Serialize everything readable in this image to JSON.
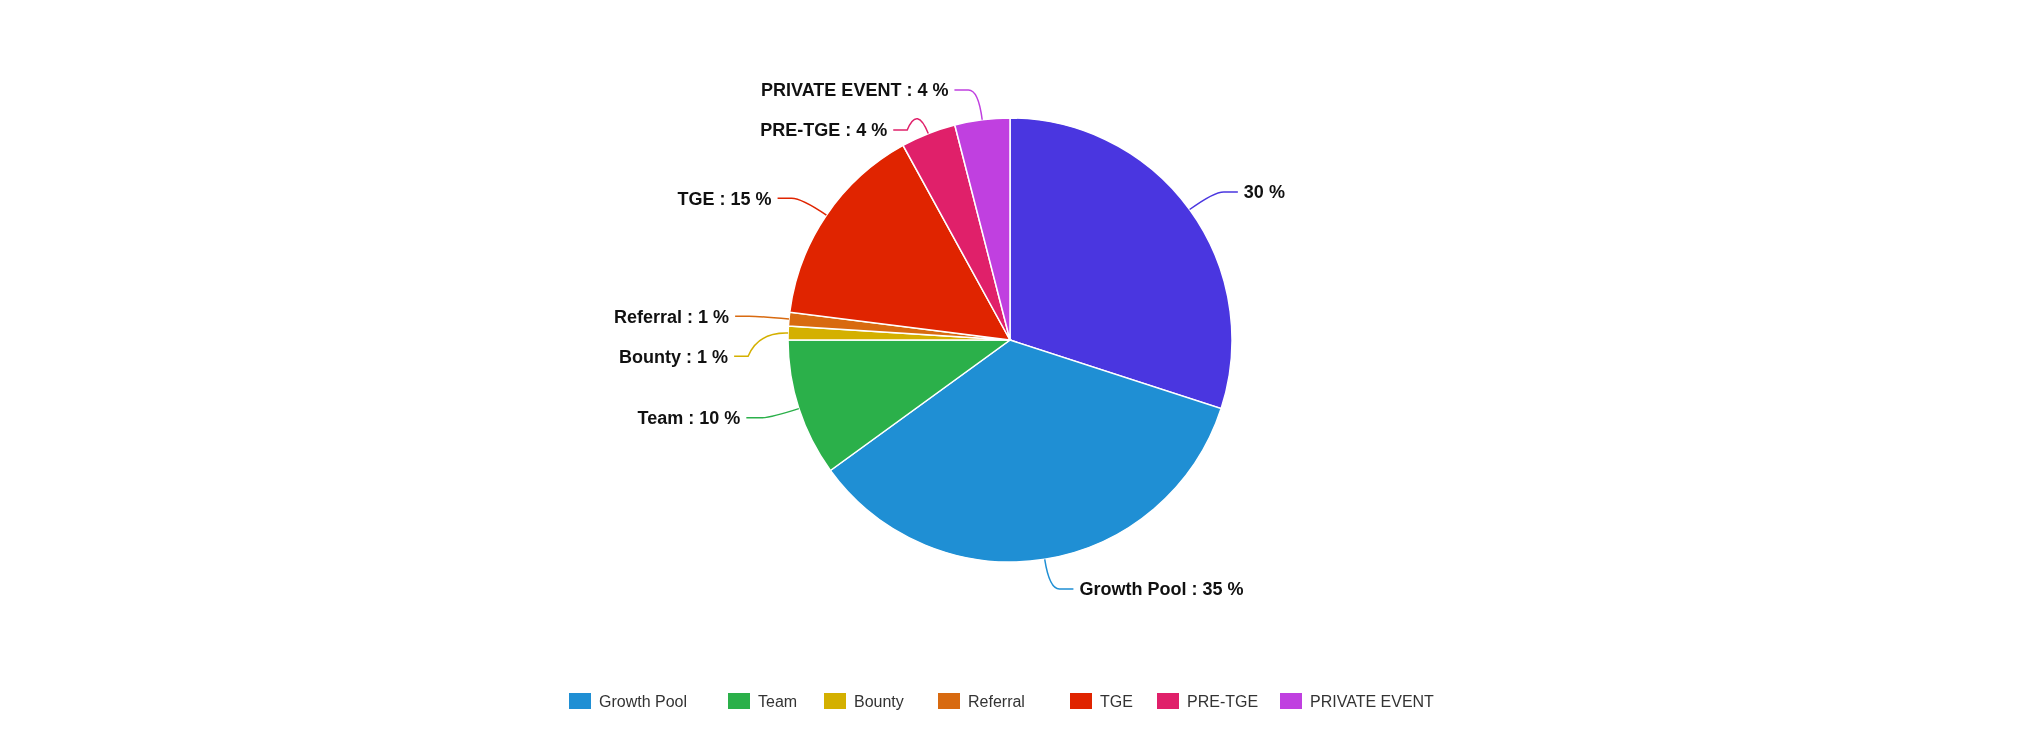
{
  "chart_data": {
    "type": "pie",
    "categories": [
      null,
      "Growth Pool",
      "Team",
      "Bounty",
      "Referral",
      "TGE",
      "PRE-TGE",
      "PRIVATE EVENT"
    ],
    "values": [
      30,
      35,
      10,
      1,
      1,
      15,
      4,
      4
    ],
    "value_labels": [
      "30 %",
      "Growth Pool : 35 %",
      "Team : 10 %",
      "Bounty : 1 %",
      "Referral : 1 %",
      "TGE : 15 %",
      "PRE-TGE : 4 %",
      "PRIVATE EVENT : 4 %"
    ],
    "colors": [
      "#4a36e0",
      "#1f8fd4",
      "#2bb04a",
      "#d4b000",
      "#d86a10",
      "#e02400",
      "#e0206a",
      "#c040e0"
    ],
    "legend": "bottom"
  }
}
